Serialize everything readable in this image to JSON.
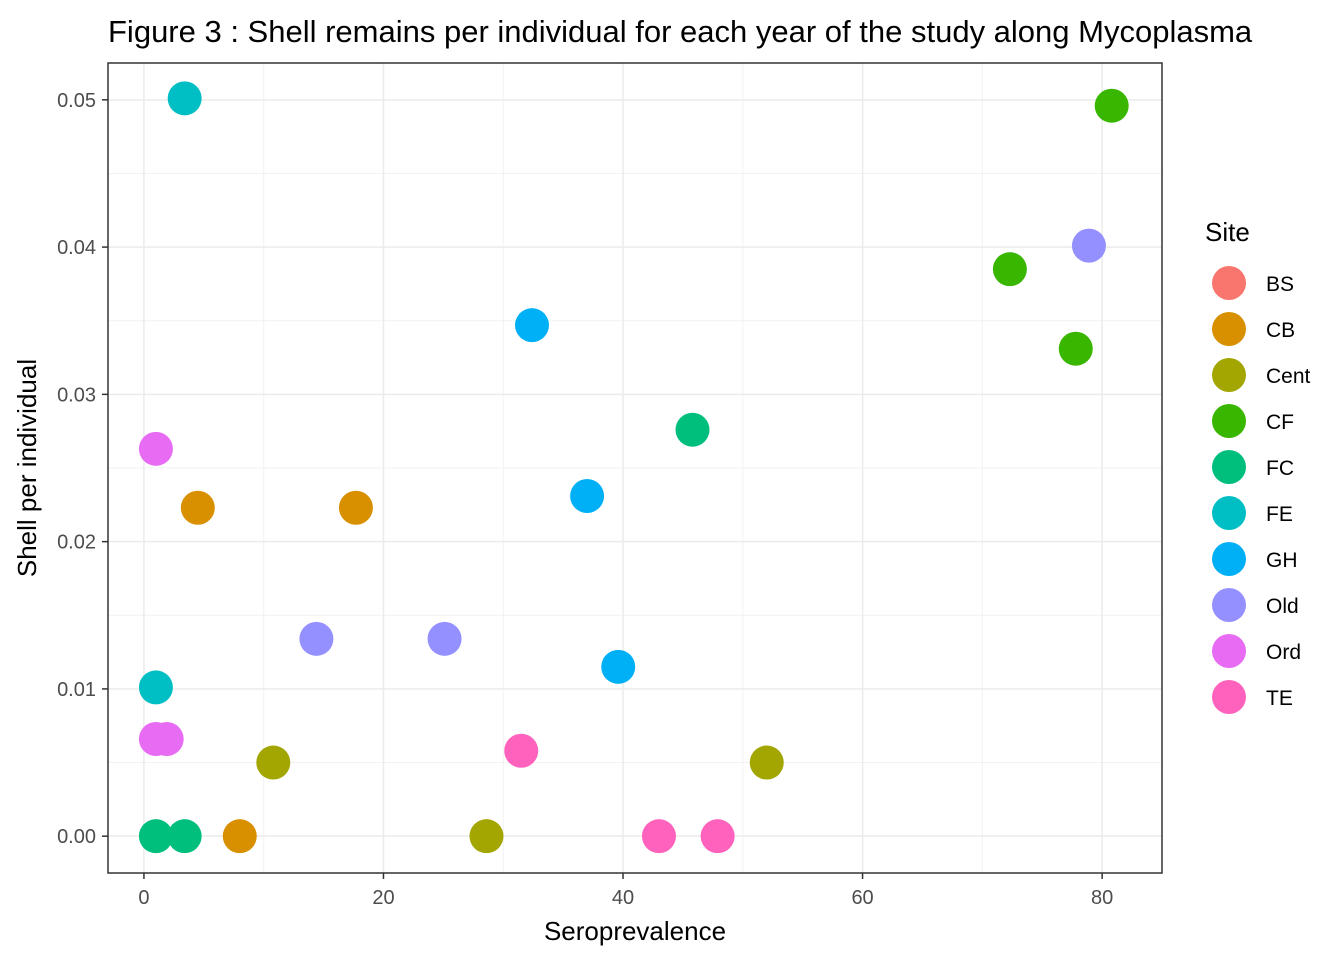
{
  "chart_data": {
    "type": "scatter",
    "title": "Figure 3 : Shell remains per individual for each year of the study along Mycoplasma",
    "xlabel": "Seroprevalence",
    "ylabel": "Shell per individual",
    "xlim": [
      -3,
      85
    ],
    "ylim": [
      -0.0025,
      0.0525
    ],
    "xticks": [
      0,
      20,
      40,
      60,
      80
    ],
    "xtick_labels": [
      "0",
      "20",
      "40",
      "60",
      "80"
    ],
    "yticks": [
      0.0,
      0.01,
      0.02,
      0.03,
      0.04,
      0.05
    ],
    "ytick_labels": [
      "0.00",
      "0.01",
      "0.02",
      "0.03",
      "0.04",
      "0.05"
    ],
    "grid": true,
    "legend": {
      "title": "Site",
      "position": "right"
    },
    "series": [
      {
        "name": "BS",
        "color": "#F8766D",
        "points": []
      },
      {
        "name": "CB",
        "color": "#D89000",
        "points": [
          [
            4.5,
            0.0223
          ],
          [
            17.7,
            0.0223
          ],
          [
            8.0,
            0.0
          ]
        ]
      },
      {
        "name": "Cent",
        "color": "#A3A500",
        "points": [
          [
            10.8,
            0.005
          ],
          [
            52.0,
            0.005
          ],
          [
            28.6,
            0.0
          ]
        ]
      },
      {
        "name": "CF",
        "color": "#39B600",
        "points": [
          [
            80.8,
            0.0496
          ],
          [
            72.3,
            0.0385
          ],
          [
            77.8,
            0.0331
          ]
        ]
      },
      {
        "name": "FC",
        "color": "#00BF7D",
        "points": [
          [
            45.8,
            0.0276
          ],
          [
            1.0,
            0.0
          ],
          [
            3.4,
            0.0
          ]
        ]
      },
      {
        "name": "FE",
        "color": "#00BFC4",
        "points": [
          [
            3.4,
            0.0501
          ],
          [
            1.0,
            0.0101
          ]
        ]
      },
      {
        "name": "GH",
        "color": "#00B0F6",
        "points": [
          [
            32.4,
            0.0347
          ],
          [
            37.0,
            0.0231
          ],
          [
            39.6,
            0.0115
          ]
        ]
      },
      {
        "name": "Old",
        "color": "#9590FF",
        "points": [
          [
            78.9,
            0.0401
          ],
          [
            14.4,
            0.0134
          ],
          [
            25.1,
            0.0134
          ]
        ]
      },
      {
        "name": "Ord",
        "color": "#E76BF3",
        "points": [
          [
            1.0,
            0.0263
          ],
          [
            1.0,
            0.0066
          ],
          [
            1.9,
            0.0066
          ]
        ]
      },
      {
        "name": "TE",
        "color": "#FF62BC",
        "points": [
          [
            31.5,
            0.0058
          ],
          [
            43.0,
            0.0
          ],
          [
            47.9,
            0.0
          ]
        ]
      }
    ]
  }
}
